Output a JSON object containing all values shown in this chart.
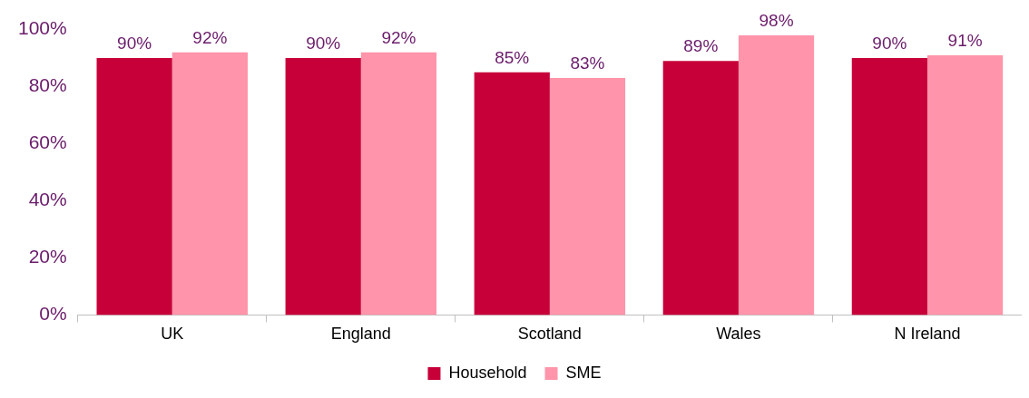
{
  "chart_data": {
    "type": "bar",
    "categories": [
      "UK",
      "England",
      "Scotland",
      "Wales",
      "N Ireland"
    ],
    "series": [
      {
        "name": "Household",
        "color": "#c8003a",
        "values": [
          90,
          90,
          85,
          89,
          90
        ],
        "value_labels": [
          "90%",
          "90%",
          "85%",
          "89%",
          "90%"
        ]
      },
      {
        "name": "SME",
        "color": "#ff94aa",
        "values": [
          92,
          92,
          83,
          98,
          91
        ],
        "value_labels": [
          "92%",
          "92%",
          "83%",
          "98%",
          "91%"
        ]
      }
    ],
    "ylim": [
      0,
      100
    ],
    "yticks": [
      {
        "value": 0,
        "label": "0%"
      },
      {
        "value": 20,
        "label": "20%"
      },
      {
        "value": 40,
        "label": "40%"
      },
      {
        "value": 60,
        "label": "60%"
      },
      {
        "value": 80,
        "label": "80%"
      },
      {
        "value": 100,
        "label": "100%"
      }
    ],
    "grid": false,
    "legend": "bottom"
  }
}
